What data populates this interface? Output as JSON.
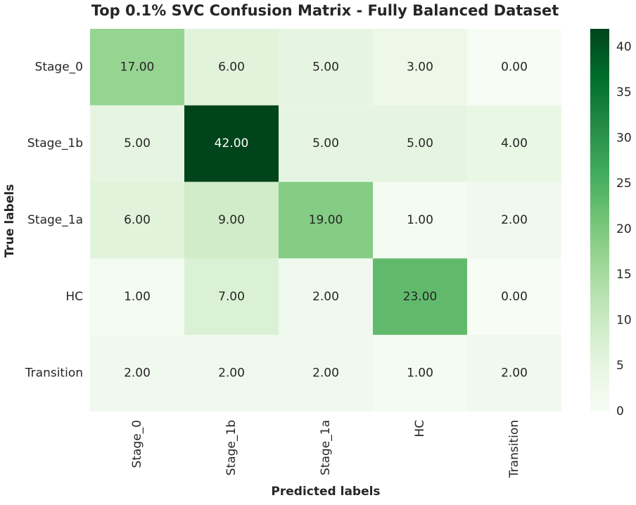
{
  "chart_data": {
    "type": "heatmap",
    "title": "Top 0.1% SVC Confusion Matrix - Fully Balanced Dataset",
    "xlabel": "Predicted labels",
    "ylabel": "True labels",
    "row_labels": [
      "Stage_0",
      "Stage_1b",
      "Stage_1a",
      "HC",
      "Transition"
    ],
    "col_labels": [
      "Stage_0",
      "Stage_1b",
      "Stage_1a",
      "HC",
      "Transition"
    ],
    "values": [
      [
        17,
        6,
        5,
        3,
        0
      ],
      [
        5,
        42,
        5,
        5,
        4
      ],
      [
        6,
        9,
        19,
        1,
        2
      ],
      [
        1,
        7,
        2,
        23,
        0
      ],
      [
        2,
        2,
        2,
        1,
        2
      ]
    ],
    "value_format": "2 decimals",
    "colormap": "Greens",
    "colorbar": {
      "min": 0,
      "max": 42,
      "ticks": [
        0,
        5,
        10,
        15,
        20,
        25,
        30,
        35,
        40
      ]
    }
  }
}
